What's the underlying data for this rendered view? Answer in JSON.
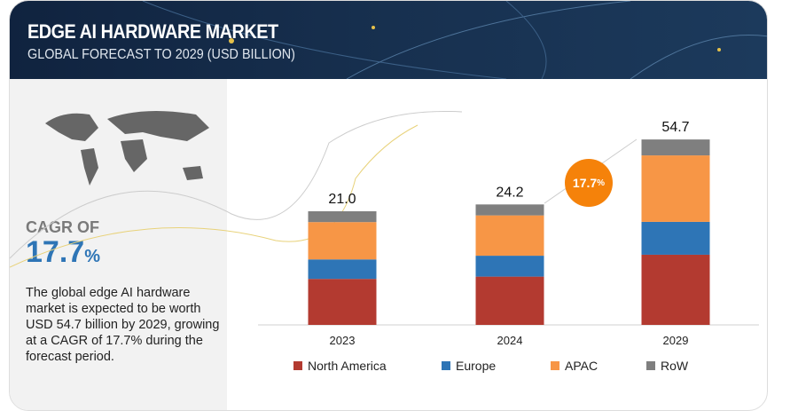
{
  "header": {
    "title": "EDGE AI HARDWARE MARKET",
    "subtitle": "GLOBAL FORECAST TO 2029 (USD BILLION)"
  },
  "left_panel": {
    "cagr_label": "CAGR OF",
    "cagr_value": "17.7",
    "cagr_unit": "%",
    "description": "The global edge AI hardware market is expected to be worth USD 54.7 billion by 2029, growing at a CAGR of 17.7% during the forecast period."
  },
  "cagr_bubble": {
    "value": "17.7",
    "unit": "%",
    "color": "#f5820a"
  },
  "chart_data": {
    "type": "bar",
    "stacked": true,
    "categories": [
      "2023",
      "2024",
      "2029"
    ],
    "totals": [
      "21.0",
      "24.2",
      "54.7"
    ],
    "series": [
      {
        "name": "North America",
        "color": "#b33a30",
        "values": [
          8.5,
          9.7,
          20.7
        ]
      },
      {
        "name": "Europe",
        "color": "#2e75b6",
        "values": [
          3.6,
          4.2,
          9.7
        ]
      },
      {
        "name": "APAC",
        "color": "#f79646",
        "values": [
          6.9,
          8.1,
          19.6
        ]
      },
      {
        "name": "RoW",
        "color": "#7f7f7f",
        "values": [
          2.0,
          2.2,
          4.7
        ]
      }
    ],
    "legend_position": "bottom",
    "grid": false
  }
}
